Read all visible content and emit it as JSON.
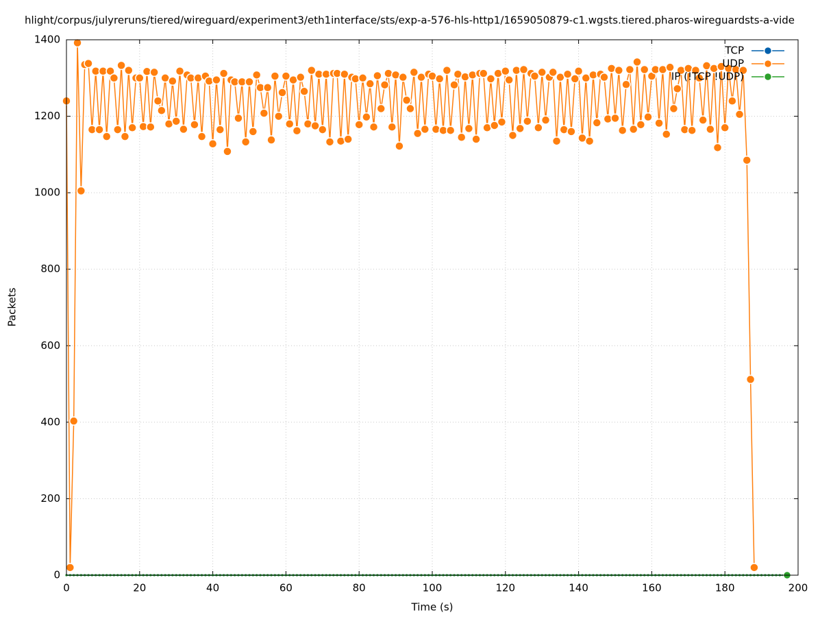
{
  "chart_data": {
    "type": "line",
    "title": "hlight/corpus/julyreruns/tiered/wireguard/experiment3/eth1interface/sts/exp-a-576-hls-http1/1659050879-c1.wgsts.tiered.pharos-wireguardsts-a-vide",
    "x_label": "Time (s)",
    "y_label": "Packets",
    "xlim": [
      0,
      200
    ],
    "xticks": [
      0,
      20,
      40,
      60,
      80,
      100,
      120,
      140,
      160,
      180,
      200
    ],
    "ylim": [
      0,
      1400
    ],
    "yticks": [
      0,
      200,
      400,
      600,
      800,
      1000,
      1200,
      1400
    ],
    "grid": true,
    "legend": "top-right",
    "series": [
      {
        "name": "TCP",
        "color": "#0060ad",
        "x": [
          0,
          1,
          2,
          3,
          4,
          5,
          6,
          7,
          8,
          9,
          10,
          11,
          12,
          13,
          14,
          15,
          16,
          17,
          18,
          19,
          20,
          21,
          22,
          23,
          24,
          25,
          26,
          27,
          28,
          29,
          30,
          31,
          32,
          33,
          34,
          35,
          36,
          37,
          38,
          39,
          40,
          41,
          42,
          43,
          44,
          45,
          46,
          47,
          48,
          49,
          50,
          51,
          52,
          53,
          54,
          55,
          56,
          57,
          58,
          59,
          60,
          61,
          62,
          63,
          64,
          65,
          66,
          67,
          68,
          69,
          70,
          71,
          72,
          73,
          74,
          75,
          76,
          77,
          78,
          79,
          80,
          81,
          82,
          83,
          84,
          85,
          86,
          87,
          88,
          89,
          90,
          91,
          92,
          93,
          94,
          95,
          96,
          97,
          98,
          99,
          100,
          101,
          102,
          103,
          104,
          105,
          106,
          107,
          108,
          109,
          110,
          111,
          112,
          113,
          114,
          115,
          116,
          117,
          118,
          119,
          120,
          121,
          122,
          123,
          124,
          125,
          126,
          127,
          128,
          129,
          130,
          131,
          132,
          133,
          134,
          135,
          136,
          137,
          138,
          139,
          140,
          141,
          142,
          143,
          144,
          145,
          146,
          147,
          148,
          149,
          150,
          151,
          152,
          153,
          154,
          155,
          156,
          157,
          158,
          159,
          160,
          161,
          162,
          163,
          164,
          165,
          166,
          167,
          168,
          169,
          170,
          171,
          172,
          173,
          174,
          175,
          176,
          177,
          178,
          179,
          180,
          181,
          182,
          183,
          184,
          185,
          186,
          187,
          188,
          189,
          190,
          191,
          192,
          193,
          194,
          195,
          196,
          197
        ],
        "values": [
          0,
          0,
          0,
          0,
          0,
          0,
          0,
          0,
          0,
          0,
          0,
          0,
          0,
          0,
          0,
          0,
          0,
          0,
          0,
          0,
          0,
          0,
          0,
          0,
          0,
          0,
          0,
          0,
          0,
          0,
          0,
          0,
          0,
          0,
          0,
          0,
          0,
          0,
          0,
          0,
          0,
          0,
          0,
          0,
          0,
          0,
          0,
          0,
          0,
          0,
          0,
          0,
          0,
          0,
          0,
          0,
          0,
          0,
          0,
          0,
          0,
          0,
          0,
          0,
          0,
          0,
          0,
          0,
          0,
          0,
          0,
          0,
          0,
          0,
          0,
          0,
          0,
          0,
          0,
          0,
          0,
          0,
          0,
          0,
          0,
          0,
          0,
          0,
          0,
          0,
          0,
          0,
          0,
          0,
          0,
          0,
          0,
          0,
          0,
          0,
          0,
          0,
          0,
          0,
          0,
          0,
          0,
          0,
          0,
          0,
          0,
          0,
          0,
          0,
          0,
          0,
          0,
          0,
          0,
          0,
          0,
          0,
          0,
          0,
          0,
          0,
          0,
          0,
          0,
          0,
          0,
          0,
          0,
          0,
          0,
          0,
          0,
          0,
          0,
          0,
          0,
          0,
          0,
          0,
          0,
          0,
          0,
          0,
          0,
          0,
          0,
          0,
          0,
          0,
          0,
          0,
          0,
          0,
          0,
          0,
          0,
          0,
          0,
          0,
          0,
          0,
          0,
          0,
          0,
          0,
          0,
          0,
          0,
          0,
          0,
          0,
          0,
          0,
          0,
          0,
          0,
          0,
          0,
          0,
          0,
          0,
          0,
          0,
          0,
          0,
          0,
          0,
          0,
          0,
          0,
          0,
          0,
          0
        ]
      },
      {
        "name": "UDP",
        "color": "#ff7f0e",
        "x": [
          0,
          1,
          2,
          3,
          4,
          5,
          6,
          7,
          8,
          9,
          10,
          11,
          12,
          13,
          14,
          15,
          16,
          17,
          18,
          19,
          20,
          21,
          22,
          23,
          24,
          25,
          26,
          27,
          28,
          29,
          30,
          31,
          32,
          33,
          34,
          35,
          36,
          37,
          38,
          39,
          40,
          41,
          42,
          43,
          44,
          45,
          46,
          47,
          48,
          49,
          50,
          51,
          52,
          53,
          54,
          55,
          56,
          57,
          58,
          59,
          60,
          61,
          62,
          63,
          64,
          65,
          66,
          67,
          68,
          69,
          70,
          71,
          72,
          73,
          74,
          75,
          76,
          77,
          78,
          79,
          80,
          81,
          82,
          83,
          84,
          85,
          86,
          87,
          88,
          89,
          90,
          91,
          92,
          93,
          94,
          95,
          96,
          97,
          98,
          99,
          100,
          101,
          102,
          103,
          104,
          105,
          106,
          107,
          108,
          109,
          110,
          111,
          112,
          113,
          114,
          115,
          116,
          117,
          118,
          119,
          120,
          121,
          122,
          123,
          124,
          125,
          126,
          127,
          128,
          129,
          130,
          131,
          132,
          133,
          134,
          135,
          136,
          137,
          138,
          139,
          140,
          141,
          142,
          143,
          144,
          145,
          146,
          147,
          148,
          149,
          150,
          151,
          152,
          153,
          154,
          155,
          156,
          157,
          158,
          159,
          160,
          161,
          162,
          163,
          164,
          165,
          166,
          167,
          168,
          169,
          170,
          171,
          172,
          173,
          174,
          175,
          176,
          177,
          178,
          179,
          180,
          181,
          182,
          183,
          184,
          185,
          186,
          187,
          188
        ],
        "values": [
          1240,
          20,
          403,
          1392,
          1005,
          1335,
          1338,
          1165,
          1318,
          1165,
          1318,
          1147,
          1318,
          1300,
          1165,
          1333,
          1147,
          1320,
          1170,
          1300,
          1300,
          1173,
          1317,
          1172,
          1315,
          1240,
          1215,
          1300,
          1180,
          1292,
          1187,
          1318,
          1166,
          1308,
          1300,
          1178,
          1300,
          1147,
          1305,
          1292,
          1128,
          1295,
          1165,
          1312,
          1108,
          1295,
          1290,
          1195,
          1290,
          1133,
          1290,
          1160,
          1308,
          1275,
          1208,
          1275,
          1138,
          1305,
          1200,
          1262,
          1305,
          1180,
          1295,
          1162,
          1302,
          1265,
          1180,
          1320,
          1175,
          1310,
          1165,
          1310,
          1133,
          1312,
          1312,
          1135,
          1310,
          1140,
          1302,
          1298,
          1178,
          1300,
          1198,
          1285,
          1172,
          1306,
          1220,
          1282,
          1312,
          1172,
          1308,
          1122,
          1302,
          1242,
          1220,
          1315,
          1155,
          1302,
          1166,
          1310,
          1305,
          1166,
          1298,
          1163,
          1320,
          1163,
          1282,
          1310,
          1145,
          1303,
          1168,
          1308,
          1140,
          1312,
          1312,
          1170,
          1298,
          1176,
          1312,
          1185,
          1318,
          1295,
          1150,
          1320,
          1168,
          1322,
          1187,
          1312,
          1305,
          1170,
          1315,
          1190,
          1302,
          1315,
          1135,
          1302,
          1165,
          1310,
          1160,
          1298,
          1318,
          1143,
          1300,
          1135,
          1308,
          1183,
          1310,
          1302,
          1193,
          1325,
          1195,
          1320,
          1163,
          1283,
          1322,
          1166,
          1342,
          1178,
          1322,
          1198,
          1305,
          1322,
          1182,
          1322,
          1153,
          1328,
          1220,
          1272,
          1320,
          1165,
          1325,
          1163,
          1320,
          1300,
          1190,
          1332,
          1166,
          1325,
          1118,
          1330,
          1170,
          1325,
          1240,
          1322,
          1205,
          1320,
          1085,
          512,
          20
        ]
      },
      {
        "name": "IP (!TCP !UDP)",
        "color": "#2ca02c",
        "x": [
          0,
          1,
          2,
          3,
          4,
          5,
          6,
          7,
          8,
          9,
          10,
          11,
          12,
          13,
          14,
          15,
          16,
          17,
          18,
          19,
          20,
          21,
          22,
          23,
          24,
          25,
          26,
          27,
          28,
          29,
          30,
          31,
          32,
          33,
          34,
          35,
          36,
          37,
          38,
          39,
          40,
          41,
          42,
          43,
          44,
          45,
          46,
          47,
          48,
          49,
          50,
          51,
          52,
          53,
          54,
          55,
          56,
          57,
          58,
          59,
          60,
          61,
          62,
          63,
          64,
          65,
          66,
          67,
          68,
          69,
          70,
          71,
          72,
          73,
          74,
          75,
          76,
          77,
          78,
          79,
          80,
          81,
          82,
          83,
          84,
          85,
          86,
          87,
          88,
          89,
          90,
          91,
          92,
          93,
          94,
          95,
          96,
          97,
          98,
          99,
          100,
          101,
          102,
          103,
          104,
          105,
          106,
          107,
          108,
          109,
          110,
          111,
          112,
          113,
          114,
          115,
          116,
          117,
          118,
          119,
          120,
          121,
          122,
          123,
          124,
          125,
          126,
          127,
          128,
          129,
          130,
          131,
          132,
          133,
          134,
          135,
          136,
          137,
          138,
          139,
          140,
          141,
          142,
          143,
          144,
          145,
          146,
          147,
          148,
          149,
          150,
          151,
          152,
          153,
          154,
          155,
          156,
          157,
          158,
          159,
          160,
          161,
          162,
          163,
          164,
          165,
          166,
          167,
          168,
          169,
          170,
          171,
          172,
          173,
          174,
          175,
          176,
          177,
          178,
          179,
          180,
          181,
          182,
          183,
          184,
          185,
          186,
          187,
          188,
          189,
          190,
          191,
          192,
          193,
          194,
          195,
          196,
          197
        ],
        "values": [
          0,
          0,
          0,
          0,
          0,
          0,
          0,
          0,
          0,
          0,
          0,
          0,
          0,
          0,
          0,
          0,
          0,
          0,
          0,
          0,
          0,
          0,
          0,
          0,
          0,
          0,
          0,
          0,
          0,
          0,
          0,
          0,
          0,
          0,
          0,
          0,
          0,
          0,
          0,
          0,
          0,
          0,
          0,
          0,
          0,
          0,
          0,
          0,
          0,
          0,
          0,
          0,
          0,
          0,
          0,
          0,
          0,
          0,
          0,
          0,
          0,
          0,
          0,
          0,
          0,
          0,
          0,
          0,
          0,
          0,
          0,
          0,
          0,
          0,
          0,
          0,
          0,
          0,
          0,
          0,
          0,
          0,
          0,
          0,
          0,
          0,
          0,
          0,
          0,
          0,
          0,
          0,
          0,
          0,
          0,
          0,
          0,
          0,
          0,
          0,
          0,
          0,
          0,
          0,
          0,
          0,
          0,
          0,
          0,
          0,
          0,
          0,
          0,
          0,
          0,
          0,
          0,
          0,
          0,
          0,
          0,
          0,
          0,
          0,
          0,
          0,
          0,
          0,
          0,
          0,
          0,
          0,
          0,
          0,
          0,
          0,
          0,
          0,
          0,
          0,
          0,
          0,
          0,
          0,
          0,
          0,
          0,
          0,
          0,
          0,
          0,
          0,
          0,
          0,
          0,
          0,
          0,
          0,
          0,
          0,
          0,
          0,
          0,
          0,
          0,
          0,
          0,
          0,
          0,
          0,
          0,
          0,
          0,
          0,
          0,
          0,
          0,
          0,
          0,
          0,
          0,
          0,
          0,
          0,
          0,
          0,
          0,
          0,
          0,
          0,
          0,
          0,
          0,
          0,
          0,
          0,
          0,
          0
        ]
      }
    ]
  }
}
